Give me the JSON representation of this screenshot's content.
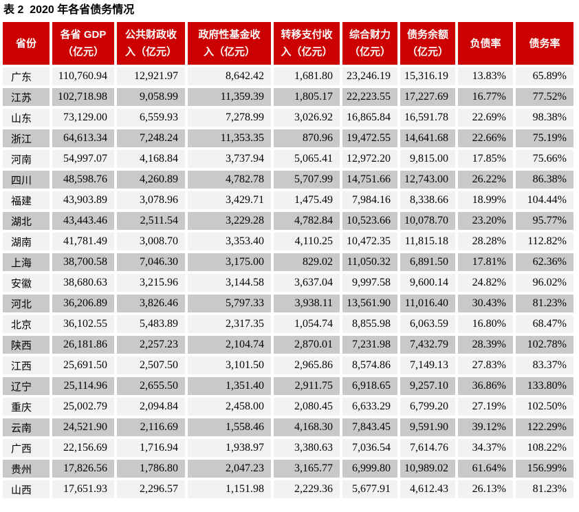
{
  "title": "表 2  2020 年各省债务情况",
  "colors": {
    "header_bg": "#CC0000",
    "header_text": "#FFFFFF",
    "row_light": "#F2F2F2",
    "row_dark": "#C9C9C9"
  },
  "table": {
    "columns": [
      "省份",
      "各省 GDP\n（亿元）",
      "公共财政收\n入（亿元）",
      "政府性基金收\n入（亿元）",
      "转移支付收\n入（亿元）",
      "综合财力\n（亿元）",
      "债务余额\n（亿元）",
      "负债率",
      "债务率"
    ],
    "rows": [
      [
        "广东",
        "110,760.94",
        "12,921.97",
        "8,642.42",
        "1,681.80",
        "23,246.19",
        "15,316.19",
        "13.83%",
        "65.89%"
      ],
      [
        "江苏",
        "102,718.98",
        "9,058.99",
        "11,359.39",
        "1,805.17",
        "22,223.55",
        "17,227.69",
        "16.77%",
        "77.52%"
      ],
      [
        "山东",
        "73,129.00",
        "6,559.93",
        "7,278.99",
        "3,026.92",
        "16,865.84",
        "16,591.78",
        "22.69%",
        "98.38%"
      ],
      [
        "浙江",
        "64,613.34",
        "7,248.24",
        "11,353.35",
        "870.96",
        "19,472.55",
        "14,641.68",
        "22.66%",
        "75.19%"
      ],
      [
        "河南",
        "54,997.07",
        "4,168.84",
        "3,737.94",
        "5,065.41",
        "12,972.20",
        "9,815.00",
        "17.85%",
        "75.66%"
      ],
      [
        "四川",
        "48,598.76",
        "4,260.89",
        "4,782.78",
        "5,707.99",
        "14,751.66",
        "12,743.00",
        "26.22%",
        "86.38%"
      ],
      [
        "福建",
        "43,903.89",
        "3,078.96",
        "3,429.71",
        "1,475.49",
        "7,984.16",
        "8,338.66",
        "18.99%",
        "104.44%"
      ],
      [
        "湖北",
        "43,443.46",
        "2,511.54",
        "3,229.28",
        "4,782.84",
        "10,523.66",
        "10,078.70",
        "23.20%",
        "95.77%"
      ],
      [
        "湖南",
        "41,781.49",
        "3,008.70",
        "3,353.40",
        "4,110.25",
        "10,472.35",
        "11,815.18",
        "28.28%",
        "112.82%"
      ],
      [
        "上海",
        "38,700.58",
        "7,046.30",
        "3,175.00",
        "829.02",
        "11,050.32",
        "6,891.50",
        "17.81%",
        "62.36%"
      ],
      [
        "安徽",
        "38,680.63",
        "3,215.96",
        "3,144.58",
        "3,637.04",
        "9,997.58",
        "9,600.14",
        "24.82%",
        "96.02%"
      ],
      [
        "河北",
        "36,206.89",
        "3,826.46",
        "5,797.33",
        "3,938.11",
        "13,561.90",
        "11,016.40",
        "30.43%",
        "81.23%"
      ],
      [
        "北京",
        "36,102.55",
        "5,483.89",
        "2,317.35",
        "1,054.74",
        "8,855.98",
        "6,063.59",
        "16.80%",
        "68.47%"
      ],
      [
        "陕西",
        "26,181.86",
        "2,257.23",
        "2,104.74",
        "2,870.01",
        "7,231.98",
        "7,432.79",
        "28.39%",
        "102.78%"
      ],
      [
        "江西",
        "25,691.50",
        "2,507.50",
        "3,101.50",
        "2,965.86",
        "8,574.86",
        "7,149.13",
        "27.83%",
        "83.37%"
      ],
      [
        "辽宁",
        "25,114.96",
        "2,655.50",
        "1,351.40",
        "2,911.75",
        "6,918.65",
        "9,257.10",
        "36.86%",
        "133.80%"
      ],
      [
        "重庆",
        "25,002.79",
        "2,094.84",
        "2,458.00",
        "2,080.45",
        "6,633.29",
        "6,799.20",
        "27.19%",
        "102.50%"
      ],
      [
        "云南",
        "24,521.90",
        "2,116.69",
        "1,558.46",
        "4,168.30",
        "7,843.45",
        "9,591.90",
        "39.12%",
        "122.29%"
      ],
      [
        "广西",
        "22,156.69",
        "1,716.94",
        "1,938.97",
        "3,380.63",
        "7,036.54",
        "7,614.76",
        "34.37%",
        "108.22%"
      ],
      [
        "贵州",
        "17,826.56",
        "1,786.80",
        "2,047.23",
        "3,165.77",
        "6,999.80",
        "10,989.02",
        "61.64%",
        "156.99%"
      ],
      [
        "山西",
        "17,651.93",
        "2,296.57",
        "1,151.98",
        "2,229.36",
        "5,677.91",
        "4,612.43",
        "26.13%",
        "81.23%"
      ]
    ]
  }
}
